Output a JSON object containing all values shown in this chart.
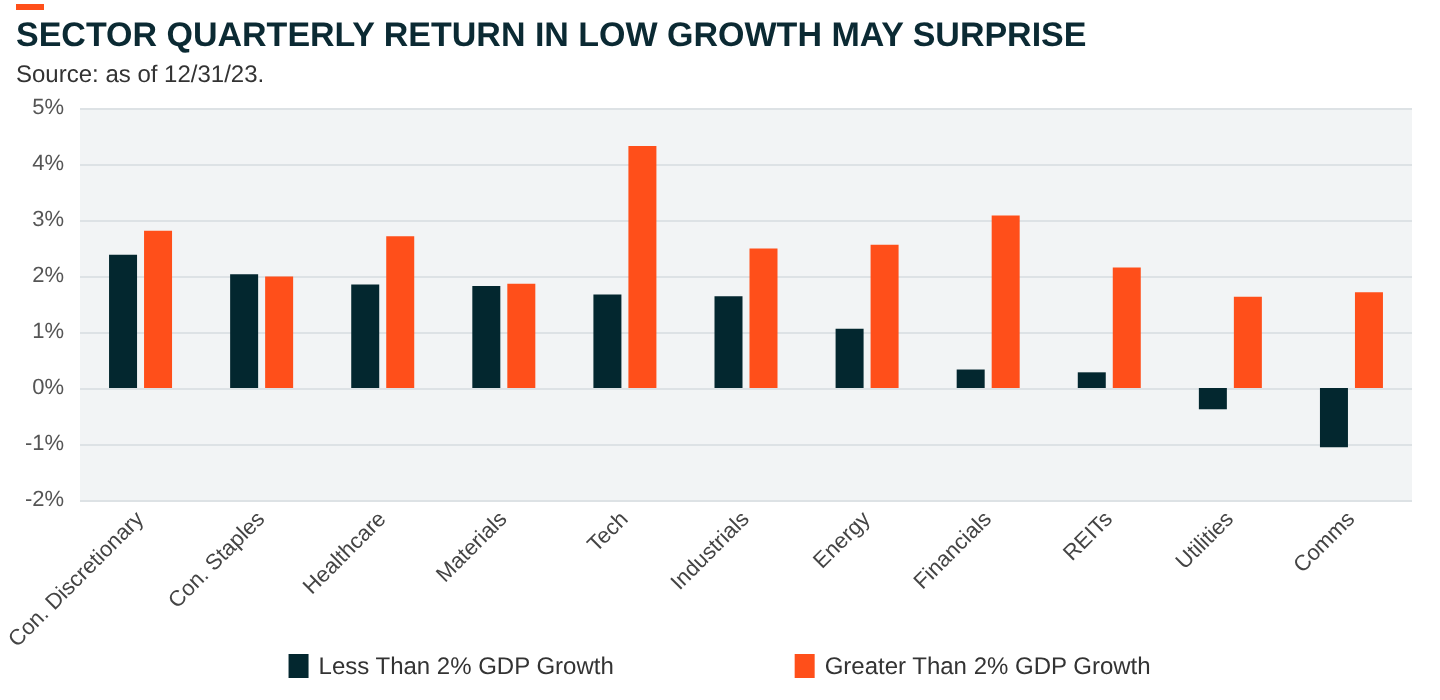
{
  "chart_data": {
    "type": "bar",
    "title": "SECTOR QUARTERLY RETURN IN LOW GROWTH MAY SURPRISE",
    "subtitle": "Source: as of 12/31/23.",
    "categories": [
      "Con. Discretionary",
      "Con. Staples",
      "Healthcare",
      "Materials",
      "Tech",
      "Industrials",
      "Energy",
      "Financials",
      "REITs",
      "Utilities",
      "Comms"
    ],
    "series": [
      {
        "name": "Less Than 2% GDP Growth",
        "color": "#03272f",
        "values": [
          2.38,
          2.03,
          1.85,
          1.82,
          1.67,
          1.64,
          1.06,
          0.33,
          0.28,
          -0.38,
          -1.06
        ]
      },
      {
        "name": "Greater Than 2% GDP Growth",
        "color": "#ff4f1a",
        "values": [
          2.81,
          1.99,
          2.71,
          1.86,
          4.32,
          2.49,
          2.56,
          3.08,
          2.15,
          1.63,
          1.71
        ]
      }
    ],
    "ylim": [
      -2,
      5
    ],
    "yticks": [
      {
        "value": -2,
        "label": "-2%"
      },
      {
        "value": -1,
        "label": "-1%"
      },
      {
        "value": 0,
        "label": "0%"
      },
      {
        "value": 1,
        "label": "1%"
      },
      {
        "value": 2,
        "label": "2%"
      },
      {
        "value": 3,
        "label": "3%"
      },
      {
        "value": 4,
        "label": "4%"
      },
      {
        "value": 5,
        "label": "5%"
      }
    ],
    "grid": "y",
    "legend": "bottom"
  }
}
